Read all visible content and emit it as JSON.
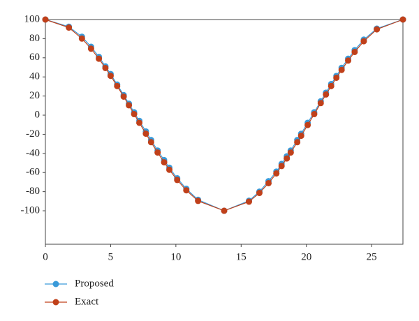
{
  "chart_data": {
    "type": "line",
    "x": [
      0,
      1.8,
      2.8,
      3.5,
      4.1,
      4.6,
      5.0,
      5.5,
      6.0,
      6.4,
      6.8,
      7.2,
      7.7,
      8.1,
      8.6,
      9.1,
      9.5,
      10.1,
      10.8,
      11.7,
      13.7,
      15.6,
      16.4,
      17.1,
      17.7,
      18.1,
      18.5,
      18.8,
      19.3,
      19.6,
      20.1,
      20.6,
      21.1,
      21.5,
      21.9,
      22.3,
      22.7,
      23.2,
      23.7,
      24.4,
      25.4,
      27.4
    ],
    "series": [
      {
        "name": "Proposed",
        "color": "#3a9ad9",
        "values": [
          100,
          92.5,
          82,
          71.5,
          61,
          51,
          43,
          32,
          21,
          12,
          3,
          -6,
          -17,
          -26,
          -37,
          -47,
          -55,
          -66,
          -77,
          -88.5,
          -100,
          -89.5,
          -80,
          -69,
          -59,
          -51,
          -43,
          -37,
          -26,
          -19.5,
          -8,
          3,
          14.5,
          23.5,
          32.5,
          41,
          49.5,
          59,
          68,
          79,
          90.5,
          100
        ]
      },
      {
        "name": "Exact",
        "color": "#c0401a",
        "values": [
          100,
          91.6,
          80.1,
          69.5,
          59.0,
          49.3,
          41.1,
          30.4,
          19.4,
          10.3,
          1.1,
          -8.0,
          -19.4,
          -28.3,
          -39.1,
          -49.3,
          -57.1,
          -67.8,
          -78.6,
          -89.7,
          -100,
          -90.5,
          -81.4,
          -71.1,
          -60.9,
          -53.2,
          -45.3,
          -39.1,
          -28.3,
          -21.6,
          -10.3,
          1.1,
          12.6,
          21.6,
          30.4,
          39.1,
          47.3,
          57.1,
          66.1,
          77.3,
          89.7,
          100
        ]
      }
    ],
    "xlim": [
      0,
      27.4
    ],
    "xticks": [
      0,
      5,
      10,
      15,
      20,
      25
    ],
    "ylim": [
      -135,
      100
    ],
    "yticks": [
      100,
      80,
      60,
      40,
      20,
      0,
      -20,
      -40,
      -60,
      -80,
      -100
    ],
    "grid": false,
    "legend": "bottom-left"
  }
}
